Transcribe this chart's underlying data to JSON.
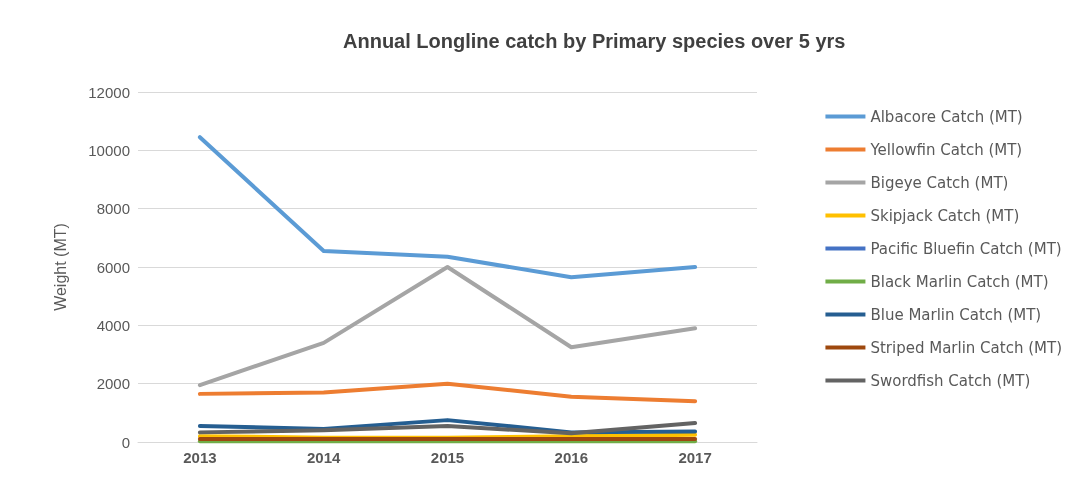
{
  "chart_data": {
    "type": "line",
    "title": "Annual Longline catch by Primary species over 5 yrs",
    "ylabel": "Weight (MT)",
    "categories": [
      "2013",
      "2014",
      "2015",
      "2016",
      "2017"
    ],
    "ylim": [
      0,
      12000
    ],
    "yticks": [
      0,
      2000,
      4000,
      6000,
      8000,
      10000,
      12000
    ],
    "grid": "y",
    "legend": "right",
    "marker": "none",
    "line_style": "solid",
    "series": [
      {
        "name": "Albacore Catch (MT)",
        "color": "#5b9bd5",
        "values": [
          10450,
          6550,
          6350,
          5650,
          6000
        ]
      },
      {
        "name": "Yellowfin Catch (MT)",
        "color": "#ed7d31",
        "values": [
          1650,
          1700,
          2000,
          1550,
          1400
        ]
      },
      {
        "name": "Bigeye Catch (MT)",
        "color": "#a5a5a5",
        "values": [
          1950,
          3400,
          6000,
          3250,
          3900
        ]
      },
      {
        "name": "Skipjack Catch (MT)",
        "color": "#ffc000",
        "values": [
          200,
          150,
          150,
          200,
          250
        ]
      },
      {
        "name": "Pacific Bluefin Catch (MT)",
        "color": "#4472c4",
        "values": [
          null,
          null,
          null,
          null,
          null
        ]
      },
      {
        "name": "Black Marlin Catch (MT)",
        "color": "#70ad47",
        "values": [
          30,
          30,
          30,
          30,
          30
        ]
      },
      {
        "name": "Blue Marlin Catch (MT)",
        "color": "#255e91",
        "values": [
          550,
          450,
          750,
          330,
          360
        ]
      },
      {
        "name": "Striped Marlin Catch (MT)",
        "color": "#9e480e",
        "values": [
          100,
          100,
          100,
          100,
          100
        ]
      },
      {
        "name": "Swordfish Catch (MT)",
        "color": "#636363",
        "values": [
          330,
          400,
          550,
          300,
          650
        ]
      }
    ]
  }
}
